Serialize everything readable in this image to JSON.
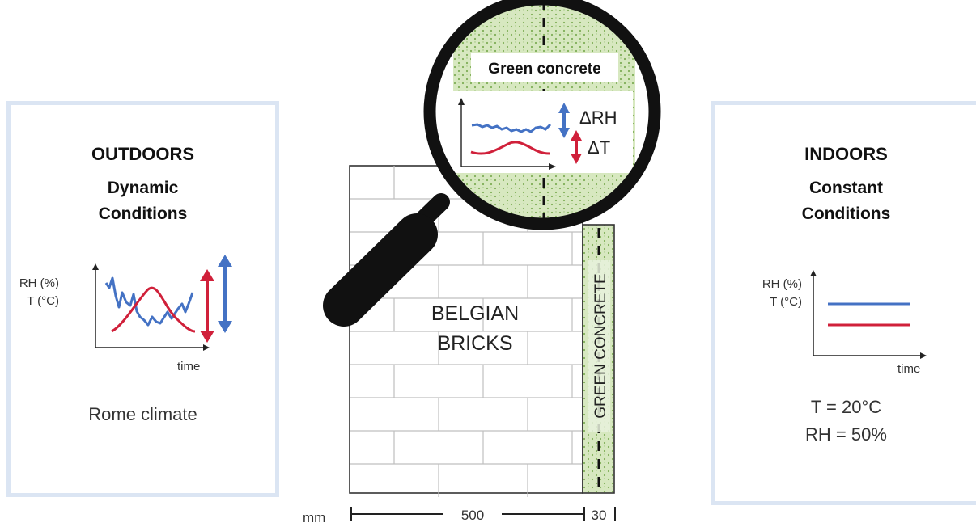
{
  "outdoor": {
    "title": "OUTDOORS",
    "subtitle_1": "Dynamic",
    "subtitle_2": "Conditions",
    "y_label_1": "RH (%)",
    "y_label_2": "T (°C)",
    "x_label": "time",
    "caption": "Rome climate"
  },
  "indoor": {
    "title": "INDOORS",
    "subtitle_1": "Constant",
    "subtitle_2": "Conditions",
    "y_label_1": "RH (%)",
    "y_label_2": "T (°C)",
    "x_label": "time",
    "temp": "T = 20°C",
    "rh": "RH = 50%"
  },
  "wall": {
    "brick_label_1": "BELGIAN",
    "brick_label_2": "BRICKS",
    "concrete_label": "GREEN CONCRETE"
  },
  "magnifier": {
    "title": "Green concrete",
    "delta_rh": "ΔRH",
    "delta_t": "ΔT"
  },
  "dimensions": {
    "unit": "mm",
    "brick_width": "500",
    "concrete_width": "30"
  },
  "colors": {
    "rh_line": "#4472c4",
    "t_line": "#d0203a",
    "panel_border": "#dbe5f3",
    "concrete_fill": "#d7e8c0",
    "concrete_dot": "#7fae57"
  }
}
